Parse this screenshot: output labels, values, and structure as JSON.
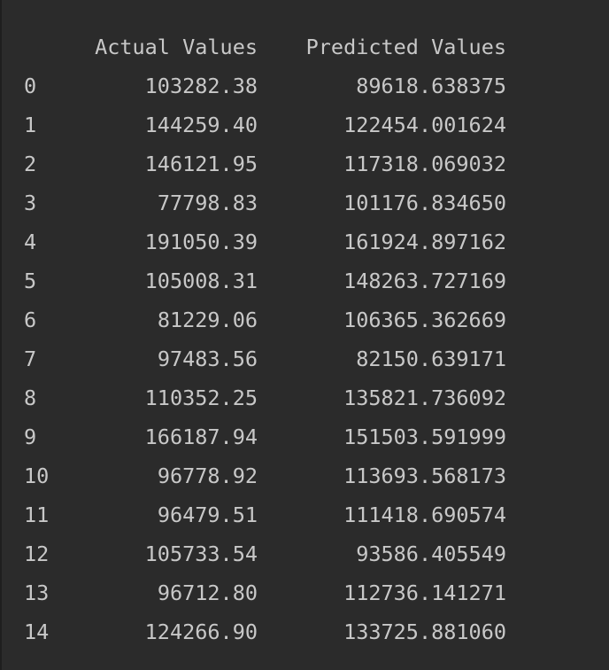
{
  "table": {
    "columns": [
      "Actual Values",
      "Predicted Values"
    ],
    "rows": [
      {
        "index": "0",
        "actual": "103282.38",
        "predicted": "89618.638375"
      },
      {
        "index": "1",
        "actual": "144259.40",
        "predicted": "122454.001624"
      },
      {
        "index": "2",
        "actual": "146121.95",
        "predicted": "117318.069032"
      },
      {
        "index": "3",
        "actual": "77798.83",
        "predicted": "101176.834650"
      },
      {
        "index": "4",
        "actual": "191050.39",
        "predicted": "161924.897162"
      },
      {
        "index": "5",
        "actual": "105008.31",
        "predicted": "148263.727169"
      },
      {
        "index": "6",
        "actual": "81229.06",
        "predicted": "106365.362669"
      },
      {
        "index": "7",
        "actual": "97483.56",
        "predicted": "82150.639171"
      },
      {
        "index": "8",
        "actual": "110352.25",
        "predicted": "135821.736092"
      },
      {
        "index": "9",
        "actual": "166187.94",
        "predicted": "151503.591999"
      },
      {
        "index": "10",
        "actual": "96778.92",
        "predicted": "113693.568173"
      },
      {
        "index": "11",
        "actual": "96479.51",
        "predicted": "111418.690574"
      },
      {
        "index": "12",
        "actual": "105733.54",
        "predicted": "93586.405549"
      },
      {
        "index": "13",
        "actual": "96712.80",
        "predicted": "112736.141271"
      },
      {
        "index": "14",
        "actual": "124266.90",
        "predicted": "133725.881060"
      }
    ]
  },
  "colors": {
    "background": "#2b2b2b",
    "text": "#c8c8c8"
  }
}
